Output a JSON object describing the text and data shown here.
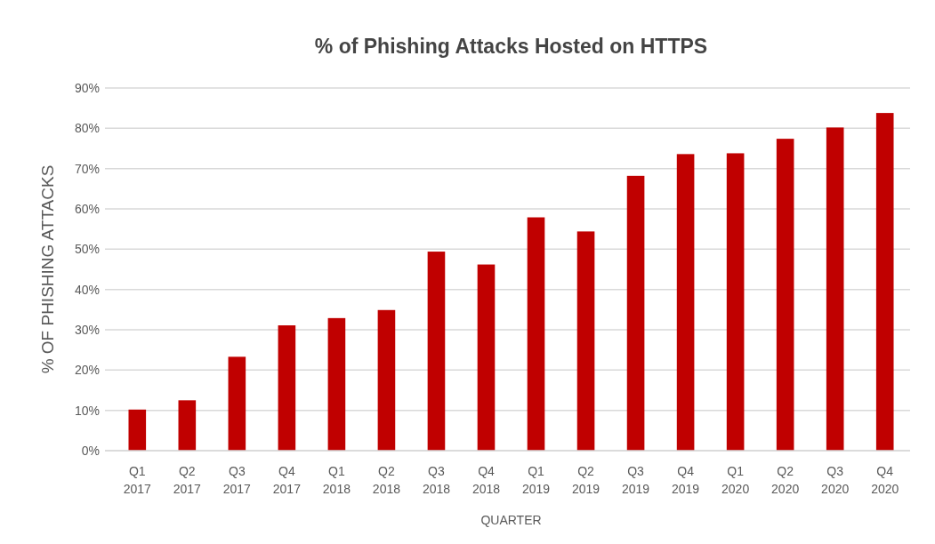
{
  "chart_data": {
    "type": "bar",
    "title": "% of Phishing Attacks Hosted on HTTPS",
    "xlabel": "QUARTER",
    "ylabel": "% OF PHISHING ATTACKS",
    "categories": [
      "Q1 2017",
      "Q2 2017",
      "Q3 2017",
      "Q4 2017",
      "Q1 2018",
      "Q2 2018",
      "Q3 2018",
      "Q4 2018",
      "Q1 2019",
      "Q2 2019",
      "Q3 2019",
      "Q4 2019",
      "Q1 2020",
      "Q2 2020",
      "Q3 2020",
      "Q4 2020"
    ],
    "values": [
      10.2,
      12.5,
      23.3,
      31.1,
      32.9,
      34.9,
      49.4,
      46.2,
      57.9,
      54.4,
      68.2,
      73.6,
      73.8,
      77.4,
      80.2,
      83.8
    ],
    "color": "#c00000",
    "ylim": [
      0,
      90
    ],
    "yticks": [
      {
        "value": 0,
        "label": "0%"
      },
      {
        "value": 10,
        "label": "10%"
      },
      {
        "value": 20,
        "label": "20%"
      },
      {
        "value": 30,
        "label": "30%"
      },
      {
        "value": 40,
        "label": "40%"
      },
      {
        "value": 50,
        "label": "50%"
      },
      {
        "value": 60,
        "label": "60%"
      },
      {
        "value": 70,
        "label": "70%"
      },
      {
        "value": 80,
        "label": "80%"
      },
      {
        "value": 90,
        "label": "90%"
      }
    ],
    "grid": "y"
  }
}
